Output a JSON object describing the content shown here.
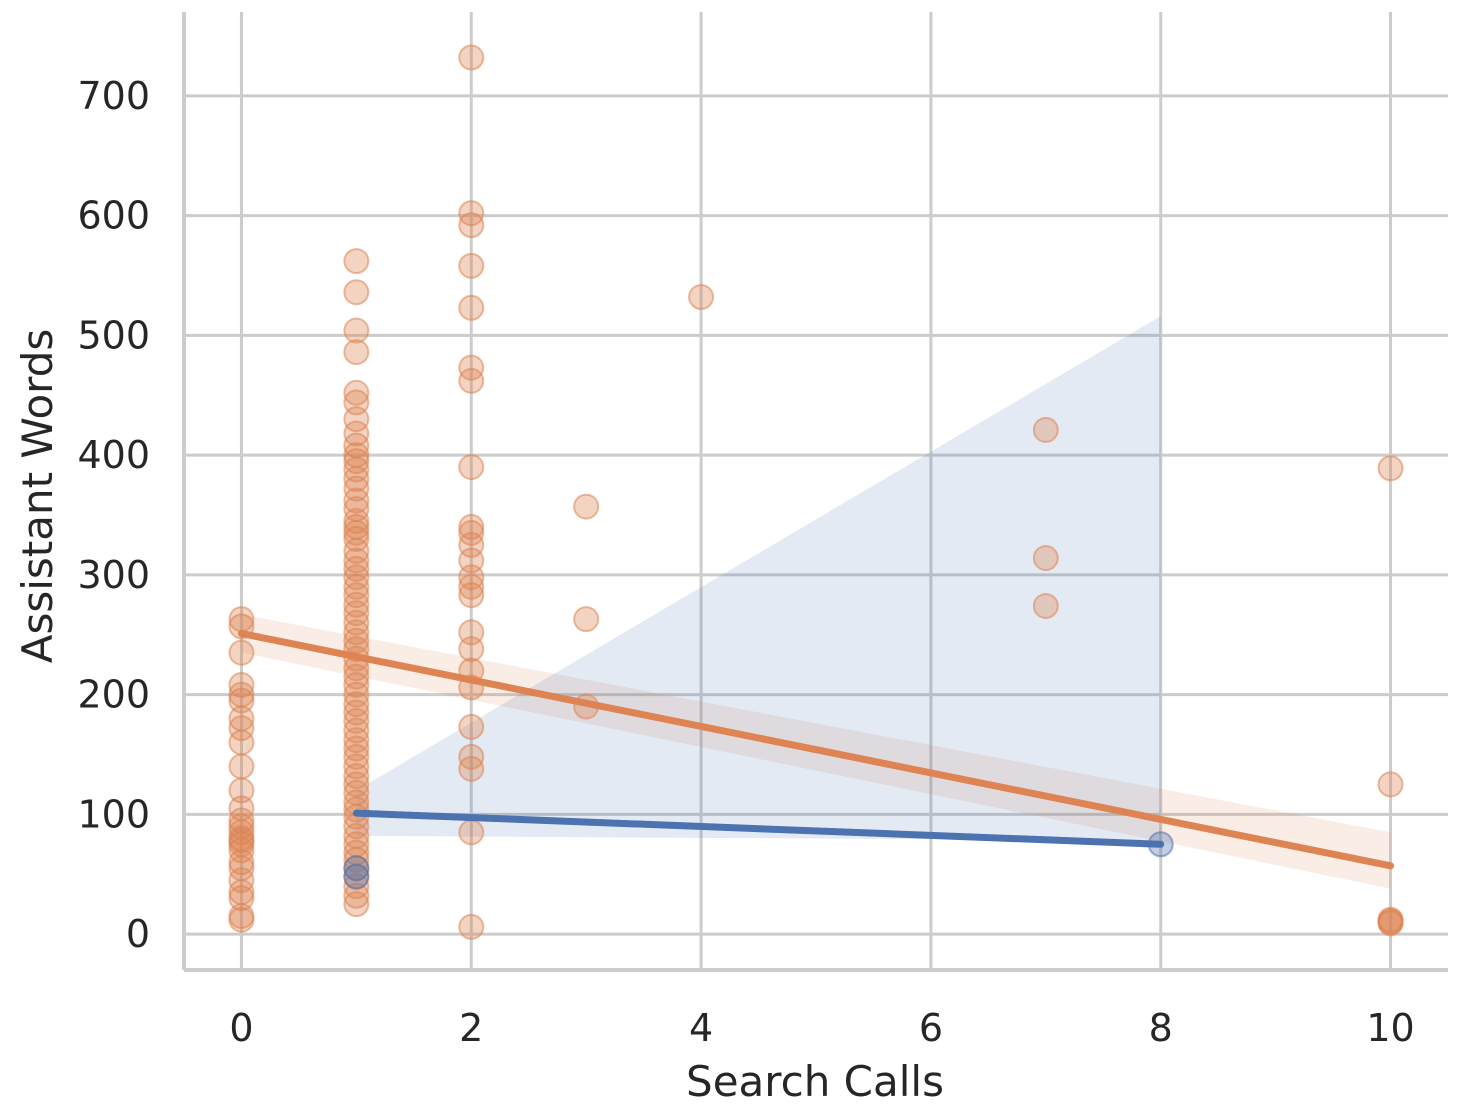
{
  "chart_data": {
    "type": "scatter",
    "title": "",
    "xlabel": "Search Calls",
    "ylabel": "Assistant Words",
    "xlim": [
      -0.5,
      10.5
    ],
    "ylim": [
      -30,
      770
    ],
    "xticks": [
      0,
      2,
      4,
      6,
      8,
      10
    ],
    "yticks": [
      0,
      100,
      200,
      300,
      400,
      500,
      600,
      700
    ],
    "grid": true,
    "series": [
      {
        "color": "#dd8452",
        "points": [
          [
            0,
            263
          ],
          [
            0,
            257
          ],
          [
            0,
            235
          ],
          [
            0,
            208
          ],
          [
            0,
            200
          ],
          [
            0,
            195
          ],
          [
            0,
            180
          ],
          [
            0,
            172
          ],
          [
            0,
            160
          ],
          [
            0,
            140
          ],
          [
            0,
            120
          ],
          [
            0,
            105
          ],
          [
            0,
            95
          ],
          [
            0,
            90
          ],
          [
            0,
            85
          ],
          [
            0,
            80
          ],
          [
            0,
            78
          ],
          [
            0,
            75
          ],
          [
            0,
            70
          ],
          [
            0,
            60
          ],
          [
            0,
            55
          ],
          [
            0,
            45
          ],
          [
            0,
            35
          ],
          [
            0,
            30
          ],
          [
            0,
            15
          ],
          [
            0,
            12
          ],
          [
            1,
            562
          ],
          [
            1,
            536
          ],
          [
            1,
            504
          ],
          [
            1,
            486
          ],
          [
            1,
            452
          ],
          [
            1,
            444
          ],
          [
            1,
            430
          ],
          [
            1,
            418
          ],
          [
            1,
            408
          ],
          [
            1,
            400
          ],
          [
            1,
            395
          ],
          [
            1,
            388
          ],
          [
            1,
            380
          ],
          [
            1,
            372
          ],
          [
            1,
            362
          ],
          [
            1,
            355
          ],
          [
            1,
            345
          ],
          [
            1,
            340
          ],
          [
            1,
            335
          ],
          [
            1,
            330
          ],
          [
            1,
            320
          ],
          [
            1,
            312
          ],
          [
            1,
            305
          ],
          [
            1,
            298
          ],
          [
            1,
            290
          ],
          [
            1,
            283
          ],
          [
            1,
            275
          ],
          [
            1,
            268
          ],
          [
            1,
            260
          ],
          [
            1,
            252
          ],
          [
            1,
            245
          ],
          [
            1,
            238
          ],
          [
            1,
            230
          ],
          [
            1,
            222
          ],
          [
            1,
            215
          ],
          [
            1,
            208
          ],
          [
            1,
            200
          ],
          [
            1,
            192
          ],
          [
            1,
            185
          ],
          [
            1,
            178
          ],
          [
            1,
            170
          ],
          [
            1,
            162
          ],
          [
            1,
            155
          ],
          [
            1,
            148
          ],
          [
            1,
            140
          ],
          [
            1,
            132
          ],
          [
            1,
            125
          ],
          [
            1,
            118
          ],
          [
            1,
            110
          ],
          [
            1,
            104
          ],
          [
            1,
            98
          ],
          [
            1,
            90
          ],
          [
            1,
            82
          ],
          [
            1,
            75
          ],
          [
            1,
            68
          ],
          [
            1,
            62
          ],
          [
            1,
            55
          ],
          [
            1,
            48
          ],
          [
            1,
            40
          ],
          [
            1,
            32
          ],
          [
            1,
            25
          ],
          [
            2,
            732
          ],
          [
            2,
            602
          ],
          [
            2,
            592
          ],
          [
            2,
            558
          ],
          [
            2,
            523
          ],
          [
            2,
            473
          ],
          [
            2,
            462
          ],
          [
            2,
            390
          ],
          [
            2,
            340
          ],
          [
            2,
            335
          ],
          [
            2,
            325
          ],
          [
            2,
            312
          ],
          [
            2,
            298
          ],
          [
            2,
            290
          ],
          [
            2,
            283
          ],
          [
            2,
            252
          ],
          [
            2,
            238
          ],
          [
            2,
            220
          ],
          [
            2,
            206
          ],
          [
            2,
            173
          ],
          [
            2,
            148
          ],
          [
            2,
            138
          ],
          [
            2,
            85
          ],
          [
            2,
            6
          ],
          [
            3,
            357
          ],
          [
            3,
            263
          ],
          [
            3,
            190
          ],
          [
            4,
            532
          ],
          [
            7,
            421
          ],
          [
            7,
            314
          ],
          [
            7,
            274
          ],
          [
            10,
            389
          ],
          [
            10,
            125
          ],
          [
            10,
            12
          ],
          [
            10,
            11
          ],
          [
            10,
            10
          ],
          [
            10,
            9
          ]
        ]
      },
      {
        "color": "#4c72b0",
        "points": [
          [
            1,
            55
          ],
          [
            1,
            48
          ],
          [
            8,
            75
          ]
        ]
      }
    ],
    "regression_lines": [
      {
        "color": "#dd8452",
        "x": [
          0,
          10
        ],
        "y": [
          251,
          57
        ],
        "ci_upper": [
          267,
          85
        ],
        "ci_lower": [
          235,
          38
        ]
      },
      {
        "color": "#4c72b0",
        "x": [
          1,
          8
        ],
        "y": [
          101,
          75
        ],
        "ci_upper": [
          120,
          516
        ],
        "ci_lower": [
          82,
          78
        ]
      }
    ]
  }
}
